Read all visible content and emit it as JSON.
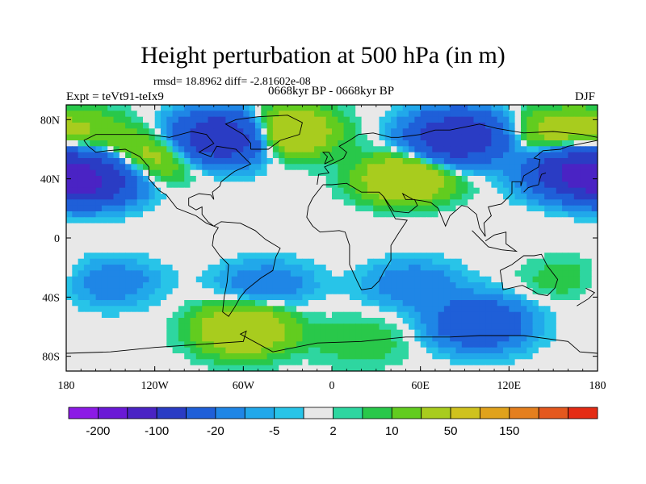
{
  "title": "Height perturbation at 500 hPa (in m)",
  "stats": "rmsd= 18.8962 diff= -2.81602e-08",
  "subtitle": "0668kyr BP - 0668kyr BP",
  "expt": "Expt = teVt91-teIx9",
  "season": "DJF",
  "chart_data": {
    "type": "heatmap",
    "title": "Height perturbation at 500 hPa (in m)",
    "x_ticks": [
      {
        "value": -180,
        "label": "180"
      },
      {
        "value": -120,
        "label": "120W"
      },
      {
        "value": -60,
        "label": "60W"
      },
      {
        "value": 0,
        "label": "0"
      },
      {
        "value": 60,
        "label": "60E"
      },
      {
        "value": 120,
        "label": "120E"
      },
      {
        "value": 180,
        "label": "180"
      }
    ],
    "y_ticks": [
      {
        "value": 80,
        "label": "80N"
      },
      {
        "value": 40,
        "label": "40N"
      },
      {
        "value": 0,
        "label": "0"
      },
      {
        "value": -40,
        "label": "40S"
      },
      {
        "value": -80,
        "label": "80S"
      }
    ],
    "xlim": [
      -180,
      180
    ],
    "ylim": [
      -90,
      90
    ],
    "colorbar": {
      "colors": [
        "#8c1ae6",
        "#6a19d6",
        "#4a23c4",
        "#2a3cc4",
        "#1f5fd8",
        "#1f86e6",
        "#21a8ea",
        "#28c4e8",
        "#e8e8e8",
        "#2ed6a0",
        "#29c84a",
        "#62cc1f",
        "#a8cc1e",
        "#cfc21e",
        "#e0a21c",
        "#e47f1e",
        "#e4581e",
        "#e42c14"
      ],
      "labels": [
        "-200",
        "-100",
        "-20",
        "-5",
        "2",
        "10",
        "50",
        "150"
      ],
      "label_boundaries": [
        1,
        3,
        5,
        7,
        9,
        11,
        13,
        15
      ]
    },
    "anomaly_centers": [
      {
        "lon": -165,
        "lat": 38,
        "value": -100
      },
      {
        "lon": -75,
        "lat": 68,
        "value": -100
      },
      {
        "lon": 85,
        "lat": 68,
        "value": -100
      },
      {
        "lon": 165,
        "lat": 45,
        "value": -100
      },
      {
        "lon": -30,
        "lat": 72,
        "value": 50
      },
      {
        "lon": 50,
        "lat": 40,
        "value": 50
      },
      {
        "lon": -120,
        "lat": 55,
        "value": 30
      },
      {
        "lon": 150,
        "lat": 70,
        "value": 30
      },
      {
        "lon": -170,
        "lat": 72,
        "value": 20
      },
      {
        "lon": -60,
        "lat": -62,
        "value": 50
      },
      {
        "lon": -150,
        "lat": -28,
        "value": -20
      },
      {
        "lon": -45,
        "lat": -30,
        "value": -20
      },
      {
        "lon": 55,
        "lat": -30,
        "value": -20
      },
      {
        "lon": 100,
        "lat": -58,
        "value": -50
      },
      {
        "lon": 160,
        "lat": -25,
        "value": 10
      },
      {
        "lon": 20,
        "lat": -70,
        "value": 10
      }
    ]
  }
}
